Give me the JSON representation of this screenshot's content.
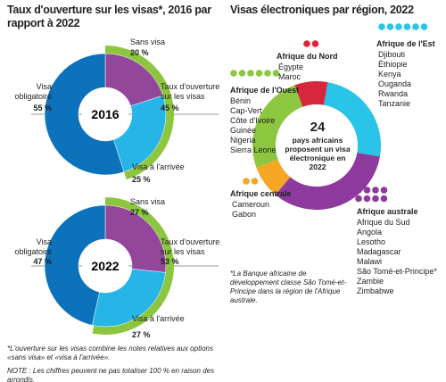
{
  "left_title": "Taux d'ouverture sur les visas*, 2016 par rapport à 2022",
  "right_title": "Visas électroniques par région, 2022",
  "footnotes": [
    "*L'ouverture sur les visas combine les notes relatives aux options «sans visa» et «visa à l'arrivée».",
    "NOTE : Les chiffres peuvent ne pas totaliser 100 % en raison des arrondis."
  ],
  "chart_data": [
    {
      "type": "donut",
      "center_label": "2016",
      "categories": [
        "Sans visa",
        "Visa à l'arrivée",
        "Visa\nobligatoire"
      ],
      "values": [
        20,
        25,
        55
      ],
      "value_labels": [
        "20 %",
        "25 %",
        "55 %"
      ],
      "colors": [
        "#93479b",
        "#27b4e6",
        "#0b72bb"
      ],
      "outer_arc": {
        "label": "Taux d'ouverture\nsur les visas",
        "value": 45,
        "value_label": "45 %",
        "color": "#8cc63f"
      }
    },
    {
      "type": "donut",
      "center_label": "2022",
      "categories": [
        "Sans visa",
        "Visa à l'arrivée",
        "Visa\nobligatoire"
      ],
      "values": [
        27,
        27,
        47
      ],
      "value_labels": [
        "27 %",
        "27 %",
        "47 %"
      ],
      "colors": [
        "#93479b",
        "#27b4e6",
        "#0b72bb"
      ],
      "outer_arc": {
        "label": "Taux d'ouverture\nsur les visas",
        "value": 53,
        "value_label": "53 %",
        "color": "#8cc63f"
      }
    },
    {
      "type": "donut",
      "center_value": 24,
      "center_label": "pays africains proposent un visa électronique en 2022",
      "categories": [
        "Afrique du Nord",
        "Afrique de l'Est",
        "Afrique australe",
        "Afrique centrale",
        "Afrique de l'Ouest"
      ],
      "values": [
        2,
        6,
        8,
        2,
        6
      ],
      "colors": [
        "#d7263d",
        "#29c4e8",
        "#8e3a9d",
        "#f5a623",
        "#8dc63f"
      ],
      "countries": [
        [
          "Égypte",
          "Maroc"
        ],
        [
          "Djibouti",
          "Éthiopie",
          "Kenya",
          "Ouganda",
          "Rwanda",
          "Tanzanie"
        ],
        [
          "Afrique du Sud",
          "Angola",
          "Lesotho",
          "Madagascar",
          "Malawi",
          "São Tomé-et-Principe*",
          "Zambie",
          "Zimbabwe"
        ],
        [
          "Cameroun",
          "Gabon"
        ],
        [
          "Bénin",
          "Cap-Vert",
          "Côte d'Ivoire",
          "Guinée",
          "Nigeria",
          "Sierra Leone"
        ]
      ],
      "note": "*La Banque africaine de développement classe São Tomé-et-Principe dans la région de l'Afrique australe."
    }
  ]
}
